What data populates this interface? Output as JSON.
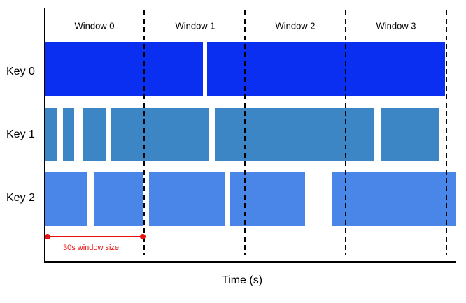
{
  "windows": [
    "Window 0",
    "Window 1",
    "Window 2",
    "Window 3"
  ],
  "keys": [
    "Key 0",
    "Key 1",
    "Key 2"
  ],
  "annotation": "30s window size",
  "axis_label": "Time (s)"
}
